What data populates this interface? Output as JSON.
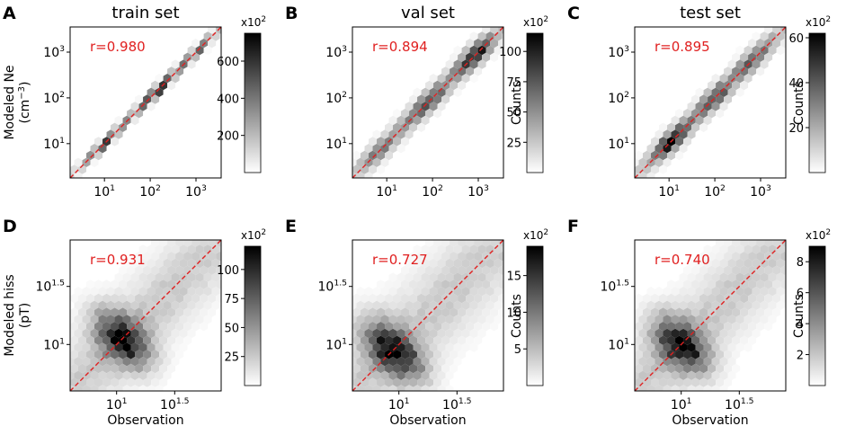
{
  "figure": {
    "col_titles": [
      "train set",
      "val set",
      "test set"
    ],
    "colorbar_multiplier_base": "x10",
    "colorbar_multiplier_exp": "2",
    "colorbar_label": "Counts",
    "colors": {
      "reference_line": "#e02020",
      "r_text": "#e02020",
      "hexbin_max": "#000000",
      "hexbin_min": "#ffffff"
    }
  },
  "chart_data": [
    {
      "panel": "A",
      "title": "train set",
      "type": "heatmap",
      "subtype": "hexbin",
      "ylabel_line1": "Modeled Ne",
      "ylabel_line2_base": "(cm",
      "ylabel_line2_exp": "−3",
      "ylabel_line2_end": ")",
      "xlabel": "",
      "scale": "log10",
      "xlim_log": [
        0.25,
        3.55
      ],
      "ylim_log": [
        0.25,
        3.55
      ],
      "xticks": [
        {
          "base": "10",
          "exp": "1",
          "log": 1
        },
        {
          "base": "10",
          "exp": "2",
          "log": 2
        },
        {
          "base": "10",
          "exp": "3",
          "log": 3
        }
      ],
      "yticks": [
        {
          "base": "10",
          "exp": "1",
          "log": 1
        },
        {
          "base": "10",
          "exp": "2",
          "log": 2
        },
        {
          "base": "10",
          "exp": "3",
          "log": 3
        }
      ],
      "r_label": "r=0.980",
      "reference_line": "y = x",
      "colorbar": {
        "range": [
          0,
          750
        ],
        "ticks": [
          {
            "v": 200,
            "label": "200"
          },
          {
            "v": 400,
            "label": "400"
          },
          {
            "v": 600,
            "label": "600"
          }
        ],
        "show_label": false
      },
      "distribution": {
        "sigma_log": 0.06,
        "peaks": [
          [
            1.0,
            0.6
          ],
          [
            2.15,
            1.0
          ],
          [
            3.0,
            0.5
          ]
        ]
      }
    },
    {
      "panel": "B",
      "title": "val set",
      "type": "heatmap",
      "subtype": "hexbin",
      "xlabel": "",
      "scale": "log10",
      "xlim_log": [
        0.25,
        3.55
      ],
      "ylim_log": [
        0.25,
        3.55
      ],
      "xticks": [
        {
          "base": "10",
          "exp": "1",
          "log": 1
        },
        {
          "base": "10",
          "exp": "2",
          "log": 2
        },
        {
          "base": "10",
          "exp": "3",
          "log": 3
        }
      ],
      "yticks": [
        {
          "base": "10",
          "exp": "1",
          "log": 1
        },
        {
          "base": "10",
          "exp": "2",
          "log": 2
        },
        {
          "base": "10",
          "exp": "3",
          "log": 3
        }
      ],
      "r_label": "r=0.894",
      "reference_line": "y = x",
      "colorbar": {
        "range": [
          0,
          115
        ],
        "ticks": [
          {
            "v": 25,
            "label": "25"
          },
          {
            "v": 50,
            "label": "50"
          },
          {
            "v": 75,
            "label": "75"
          },
          {
            "v": 100,
            "label": "100"
          }
        ],
        "show_label": true
      },
      "distribution": {
        "sigma_log": 0.13,
        "peaks": [
          [
            0.8,
            0.3
          ],
          [
            1.9,
            0.45
          ],
          [
            2.95,
            1.0
          ]
        ]
      }
    },
    {
      "panel": "C",
      "title": "test set",
      "type": "heatmap",
      "subtype": "hexbin",
      "xlabel": "",
      "scale": "log10",
      "xlim_log": [
        0.25,
        3.55
      ],
      "ylim_log": [
        0.25,
        3.55
      ],
      "xticks": [
        {
          "base": "10",
          "exp": "1",
          "log": 1
        },
        {
          "base": "10",
          "exp": "2",
          "log": 2
        },
        {
          "base": "10",
          "exp": "3",
          "log": 3
        }
      ],
      "yticks": [
        {
          "base": "10",
          "exp": "1",
          "log": 1
        },
        {
          "base": "10",
          "exp": "2",
          "log": 2
        },
        {
          "base": "10",
          "exp": "3",
          "log": 3
        }
      ],
      "r_label": "r=0.895",
      "reference_line": "y = x",
      "colorbar": {
        "range": [
          0,
          62
        ],
        "ticks": [
          {
            "v": 20,
            "label": "20"
          },
          {
            "v": 40,
            "label": "40"
          },
          {
            "v": 60,
            "label": "60"
          }
        ],
        "show_label": true
      },
      "distribution": {
        "sigma_log": 0.13,
        "peaks": [
          [
            1.05,
            1.0
          ],
          [
            2.0,
            0.45
          ],
          [
            2.85,
            0.45
          ]
        ]
      }
    },
    {
      "panel": "D",
      "title": "",
      "type": "heatmap",
      "subtype": "hexbin",
      "ylabel_line1": "Modeled hiss",
      "ylabel_line2_base": "(pT)",
      "ylabel_line2_exp": "",
      "ylabel_line2_end": "",
      "xlabel": "Observation",
      "scale": "log10",
      "xlim_log": [
        0.6,
        1.9
      ],
      "ylim_log": [
        0.6,
        1.9
      ],
      "xticks": [
        {
          "base": "10",
          "exp": "1",
          "log": 1
        },
        {
          "base": "10",
          "exp": "1.5",
          "log": 1.5
        }
      ],
      "yticks": [
        {
          "base": "10",
          "exp": "1",
          "log": 1
        },
        {
          "base": "10",
          "exp": "1.5",
          "log": 1.5
        }
      ],
      "r_label": "r=0.931",
      "reference_line": "y = x",
      "colorbar": {
        "range": [
          0,
          120
        ],
        "ticks": [
          {
            "v": 25,
            "label": "25"
          },
          {
            "v": 50,
            "label": "50"
          },
          {
            "v": 75,
            "label": "75"
          },
          {
            "v": 100,
            "label": "100"
          }
        ],
        "show_label": false
      },
      "distribution": {
        "sigma_log": 0.2,
        "peaks": [
          [
            1.05,
            1.0
          ]
        ]
      }
    },
    {
      "panel": "E",
      "title": "",
      "type": "heatmap",
      "subtype": "hexbin",
      "xlabel": "Observation",
      "scale": "log10",
      "xlim_log": [
        0.6,
        1.9
      ],
      "ylim_log": [
        0.6,
        1.9
      ],
      "xticks": [
        {
          "base": "10",
          "exp": "1",
          "log": 1
        },
        {
          "base": "10",
          "exp": "1.5",
          "log": 1.5
        }
      ],
      "yticks": [
        {
          "base": "10",
          "exp": "1",
          "log": 1
        },
        {
          "base": "10",
          "exp": "1.5",
          "log": 1.5
        }
      ],
      "r_label": "r=0.727",
      "reference_line": "y = x",
      "colorbar": {
        "range": [
          0,
          19
        ],
        "ticks": [
          {
            "v": 5,
            "label": "5"
          },
          {
            "v": 10,
            "label": "10"
          },
          {
            "v": 15,
            "label": "15"
          }
        ],
        "show_label": true
      },
      "distribution": {
        "sigma_log": 0.22,
        "peaks": [
          [
            0.95,
            1.0
          ]
        ]
      }
    },
    {
      "panel": "F",
      "title": "",
      "type": "heatmap",
      "subtype": "hexbin",
      "xlabel": "Observation",
      "scale": "log10",
      "xlim_log": [
        0.6,
        1.9
      ],
      "ylim_log": [
        0.6,
        1.9
      ],
      "xticks": [
        {
          "base": "10",
          "exp": "1",
          "log": 1
        },
        {
          "base": "10",
          "exp": "1.5",
          "log": 1.5
        }
      ],
      "yticks": [
        {
          "base": "10",
          "exp": "1",
          "log": 1
        },
        {
          "base": "10",
          "exp": "1.5",
          "log": 1.5
        }
      ],
      "r_label": "r=0.740",
      "reference_line": "y = x",
      "colorbar": {
        "range": [
          0,
          9
        ],
        "ticks": [
          {
            "v": 2,
            "label": "2"
          },
          {
            "v": 4,
            "label": "4"
          },
          {
            "v": 6,
            "label": "6"
          },
          {
            "v": 8,
            "label": "8"
          }
        ],
        "show_label": true
      },
      "distribution": {
        "sigma_log": 0.2,
        "peaks": [
          [
            1.0,
            1.0
          ]
        ]
      }
    }
  ]
}
